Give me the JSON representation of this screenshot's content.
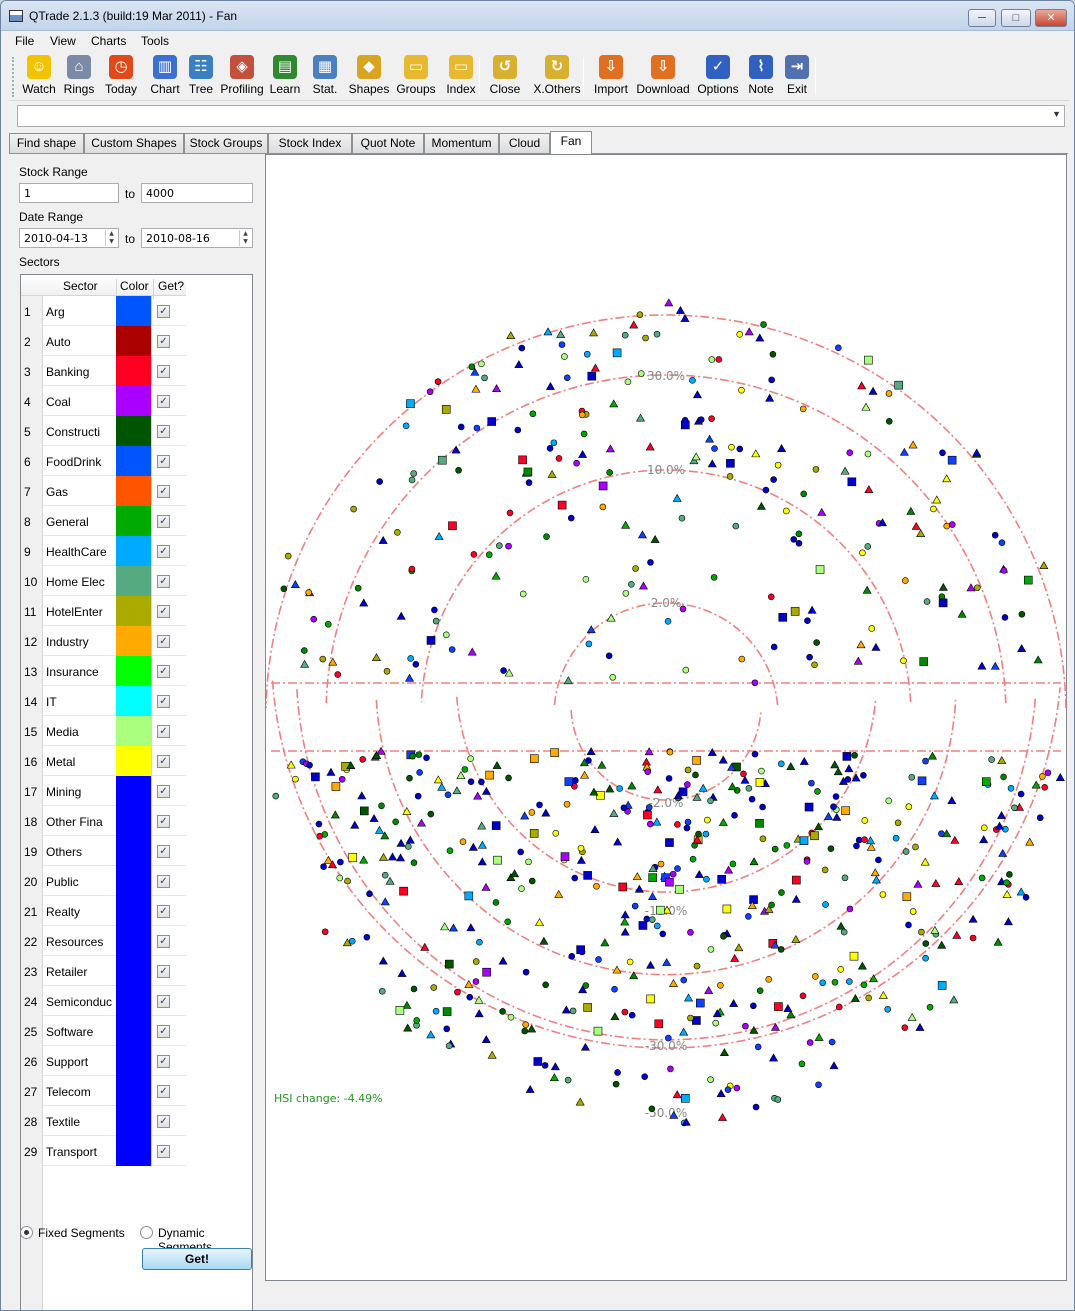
{
  "window": {
    "title": "QTrade 2.1.3 (build:19 Mar 2011) - Fan",
    "min": "─",
    "max": "□",
    "close": "✕"
  },
  "menu": [
    "File",
    "View",
    "Charts",
    "Tools"
  ],
  "toolbar": [
    {
      "label": "Watch",
      "icon": "smiley-icon",
      "color": "#f2c400",
      "glyph": "☺"
    },
    {
      "label": "Rings",
      "icon": "house-icon",
      "color": "#7a8aa8",
      "glyph": "⌂"
    },
    {
      "label": "Today",
      "icon": "alarm-clock-icon",
      "color": "#e04a1a",
      "glyph": "◷"
    },
    {
      "label": "Chart",
      "icon": "bar-chart-icon",
      "color": "#3b6fd0",
      "glyph": "▥"
    },
    {
      "label": "Tree",
      "icon": "tree-icon",
      "color": "#3a7fc2",
      "glyph": "☷"
    },
    {
      "label": "Profiling",
      "icon": "profiling-icon",
      "color": "#c2503a",
      "glyph": "◈"
    },
    {
      "label": "Learn",
      "icon": "book-icon",
      "color": "#2f8a2f",
      "glyph": "▤"
    },
    {
      "label": "Stat.",
      "icon": "stat-icon",
      "color": "#4a7fc0",
      "glyph": "▦"
    },
    {
      "label": "Shapes",
      "icon": "shapes-icon",
      "color": "#d9a520",
      "glyph": "◆"
    },
    {
      "label": "Groups",
      "icon": "folder-icon",
      "color": "#e8b830",
      "glyph": "▭"
    },
    {
      "label": "Index",
      "icon": "folder-icon",
      "color": "#e8b830",
      "glyph": "▭"
    },
    {
      "label": "Close",
      "icon": "close-folder-icon",
      "color": "#d8b030",
      "glyph": "↺"
    },
    {
      "label": "X.Others",
      "icon": "refresh-icon",
      "color": "#d8b030",
      "glyph": "↻"
    },
    {
      "label": "Import",
      "icon": "import-icon",
      "color": "#e07020",
      "glyph": "⇩"
    },
    {
      "label": "Download",
      "icon": "download-icon",
      "color": "#e07020",
      "glyph": "⇩"
    },
    {
      "label": "Options",
      "icon": "checklist-icon",
      "color": "#3060c0",
      "glyph": "✓"
    },
    {
      "label": "Note",
      "icon": "paperclip-icon",
      "color": "#3060c0",
      "glyph": "⌇"
    },
    {
      "label": "Exit",
      "icon": "exit-door-icon",
      "color": "#5070b0",
      "glyph": "⇥"
    }
  ],
  "tabs": [
    "Find shape",
    "Custom Shapes",
    "Stock Groups",
    "Stock Index",
    "Quot Note",
    "Momentum",
    "Cloud",
    "Fan"
  ],
  "active_tab": "Fan",
  "form": {
    "stock_range_label": "Stock Range",
    "stock_from": "1",
    "to_label": "to",
    "stock_to": "4000",
    "date_range_label": "Date Range",
    "date_from": "2010-04-13",
    "date_to": "2010-08-16",
    "sectors_label": "Sectors"
  },
  "sector_table": {
    "headers": [
      "Sector",
      "Color",
      "Get?"
    ],
    "rows": [
      {
        "idx": "1",
        "name": "Arg",
        "color": "#0055ff",
        "checked": true
      },
      {
        "idx": "2",
        "name": "Auto",
        "color": "#aa0000",
        "checked": true
      },
      {
        "idx": "3",
        "name": "Banking",
        "color": "#ff0022",
        "checked": true
      },
      {
        "idx": "4",
        "name": "Coal",
        "color": "#aa00ff",
        "checked": true
      },
      {
        "idx": "5",
        "name": "Constructi",
        "color": "#005500",
        "checked": true
      },
      {
        "idx": "6",
        "name": "FoodDrink",
        "color": "#0055ff",
        "checked": true
      },
      {
        "idx": "7",
        "name": "Gas",
        "color": "#ff5500",
        "checked": true
      },
      {
        "idx": "8",
        "name": "General",
        "color": "#00aa00",
        "checked": true
      },
      {
        "idx": "9",
        "name": "HealthCare",
        "color": "#00aaff",
        "checked": true
      },
      {
        "idx": "10",
        "name": "Home Elec",
        "color": "#55aa7f",
        "checked": true
      },
      {
        "idx": "11",
        "name": "HotelEnter",
        "color": "#aaaa00",
        "checked": true
      },
      {
        "idx": "12",
        "name": "Industry",
        "color": "#ffaa00",
        "checked": true
      },
      {
        "idx": "13",
        "name": "Insurance",
        "color": "#00ff00",
        "checked": true
      },
      {
        "idx": "14",
        "name": "IT",
        "color": "#00ffff",
        "checked": true
      },
      {
        "idx": "15",
        "name": "Media",
        "color": "#aaff7f",
        "checked": true
      },
      {
        "idx": "16",
        "name": "Metal",
        "color": "#ffff00",
        "checked": true
      },
      {
        "idx": "17",
        "name": "Mining",
        "color": "#0000ff",
        "checked": true
      },
      {
        "idx": "18",
        "name": "Other Fina",
        "color": "#0000ff",
        "checked": true
      },
      {
        "idx": "19",
        "name": "Others",
        "color": "#0000ff",
        "checked": true
      },
      {
        "idx": "20",
        "name": "Public",
        "color": "#0000ff",
        "checked": true
      },
      {
        "idx": "21",
        "name": "Realty",
        "color": "#0000ff",
        "checked": true
      },
      {
        "idx": "22",
        "name": "Resources",
        "color": "#0000ff",
        "checked": true
      },
      {
        "idx": "23",
        "name": "Retailer",
        "color": "#0000ff",
        "checked": true
      },
      {
        "idx": "24",
        "name": "Semiconduc",
        "color": "#0000ff",
        "checked": true
      },
      {
        "idx": "25",
        "name": "Software",
        "color": "#0000ff",
        "checked": true
      },
      {
        "idx": "26",
        "name": "Support",
        "color": "#0000ff",
        "checked": true
      },
      {
        "idx": "27",
        "name": "Telecom",
        "color": "#0000ff",
        "checked": true
      },
      {
        "idx": "28",
        "name": "Textile",
        "color": "#0000ff",
        "checked": true
      },
      {
        "idx": "29",
        "name": "Transport",
        "color": "#0000ff",
        "checked": true
      }
    ]
  },
  "segments": {
    "fixed_label": "Fixed Segments",
    "dynamic_label": "Dynamic Segments",
    "selected": "fixed"
  },
  "get_button": "Get!",
  "fan_chart": {
    "ring_labels_upper": [
      "30.0%",
      "10.0%",
      "2.0%"
    ],
    "ring_labels_lower": [
      "-2.0%",
      "-10.0%",
      "-30.0%",
      "-50.0%"
    ],
    "ring_color": "#f08080",
    "hsi_text": "HSI change: -4.49%",
    "hsi_color": "#1a9a1a"
  }
}
